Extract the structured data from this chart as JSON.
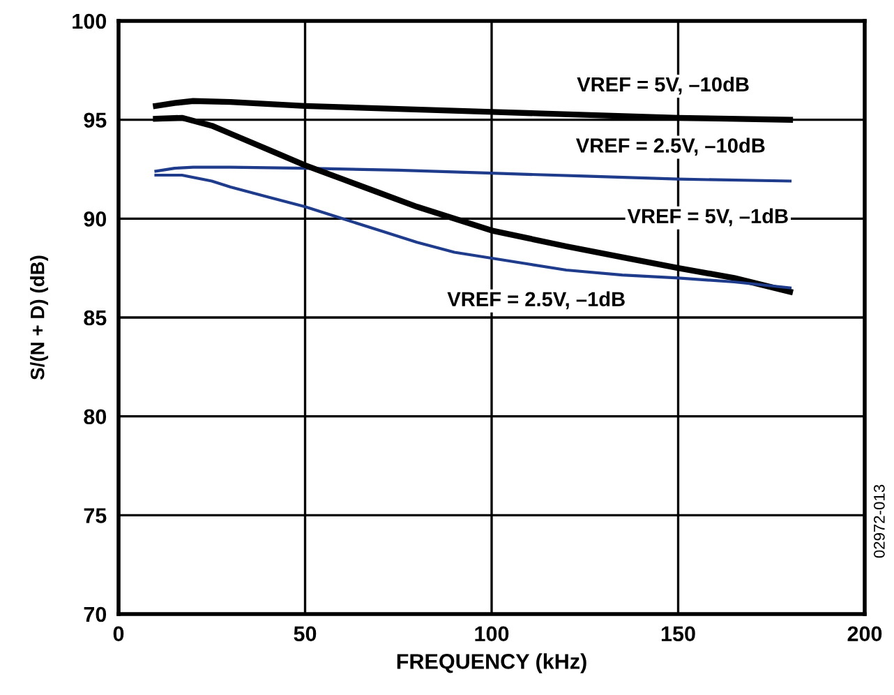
{
  "chart_data": {
    "type": "line",
    "xlabel": "FREQUENCY (kHz)",
    "ylabel": "S/(N + D) (dB)",
    "xlim": [
      0,
      200
    ],
    "xticks": [
      0,
      50,
      100,
      150,
      200
    ],
    "ylim": [
      70,
      100
    ],
    "yticks": [
      70,
      75,
      80,
      85,
      90,
      95,
      100
    ],
    "grid": true,
    "legend": false,
    "marker": "none",
    "line_style": "solid",
    "annotations": [
      "02972-013"
    ],
    "series": [
      {
        "name": "VREF = 5V, –10dB",
        "color": "#000000",
        "x": [
          10,
          15,
          20,
          30,
          50,
          75,
          100,
          125,
          150,
          180
        ],
        "values": [
          95.7,
          95.85,
          95.95,
          95.9,
          95.7,
          95.55,
          95.4,
          95.25,
          95.1,
          95.0
        ]
      },
      {
        "name": "VREF = 2.5V, –10dB",
        "color": "#1f3b8c",
        "x": [
          10,
          15,
          20,
          30,
          50,
          75,
          100,
          125,
          150,
          180
        ],
        "values": [
          92.4,
          92.55,
          92.6,
          92.6,
          92.55,
          92.45,
          92.3,
          92.15,
          92.0,
          91.9
        ]
      },
      {
        "name": "VREF = 5V, –1dB",
        "color": "#000000",
        "x": [
          10,
          17,
          25,
          30,
          40,
          50,
          60,
          70,
          80,
          90,
          100,
          110,
          120,
          135,
          150,
          165,
          180
        ],
        "values": [
          95.05,
          95.1,
          94.7,
          94.3,
          93.5,
          92.7,
          92.0,
          91.3,
          90.6,
          90.0,
          89.4,
          89.0,
          88.6,
          88.05,
          87.5,
          87.0,
          86.3
        ]
      },
      {
        "name": "VREF = 2.5V, –1dB",
        "color": "#1f3b8c",
        "x": [
          10,
          17,
          25,
          30,
          40,
          50,
          60,
          70,
          80,
          90,
          100,
          110,
          120,
          135,
          150,
          165,
          180
        ],
        "values": [
          92.2,
          92.2,
          91.9,
          91.6,
          91.1,
          90.6,
          90.0,
          89.4,
          88.8,
          88.3,
          88.0,
          87.7,
          87.4,
          87.15,
          87.0,
          86.8,
          86.5
        ]
      }
    ]
  }
}
